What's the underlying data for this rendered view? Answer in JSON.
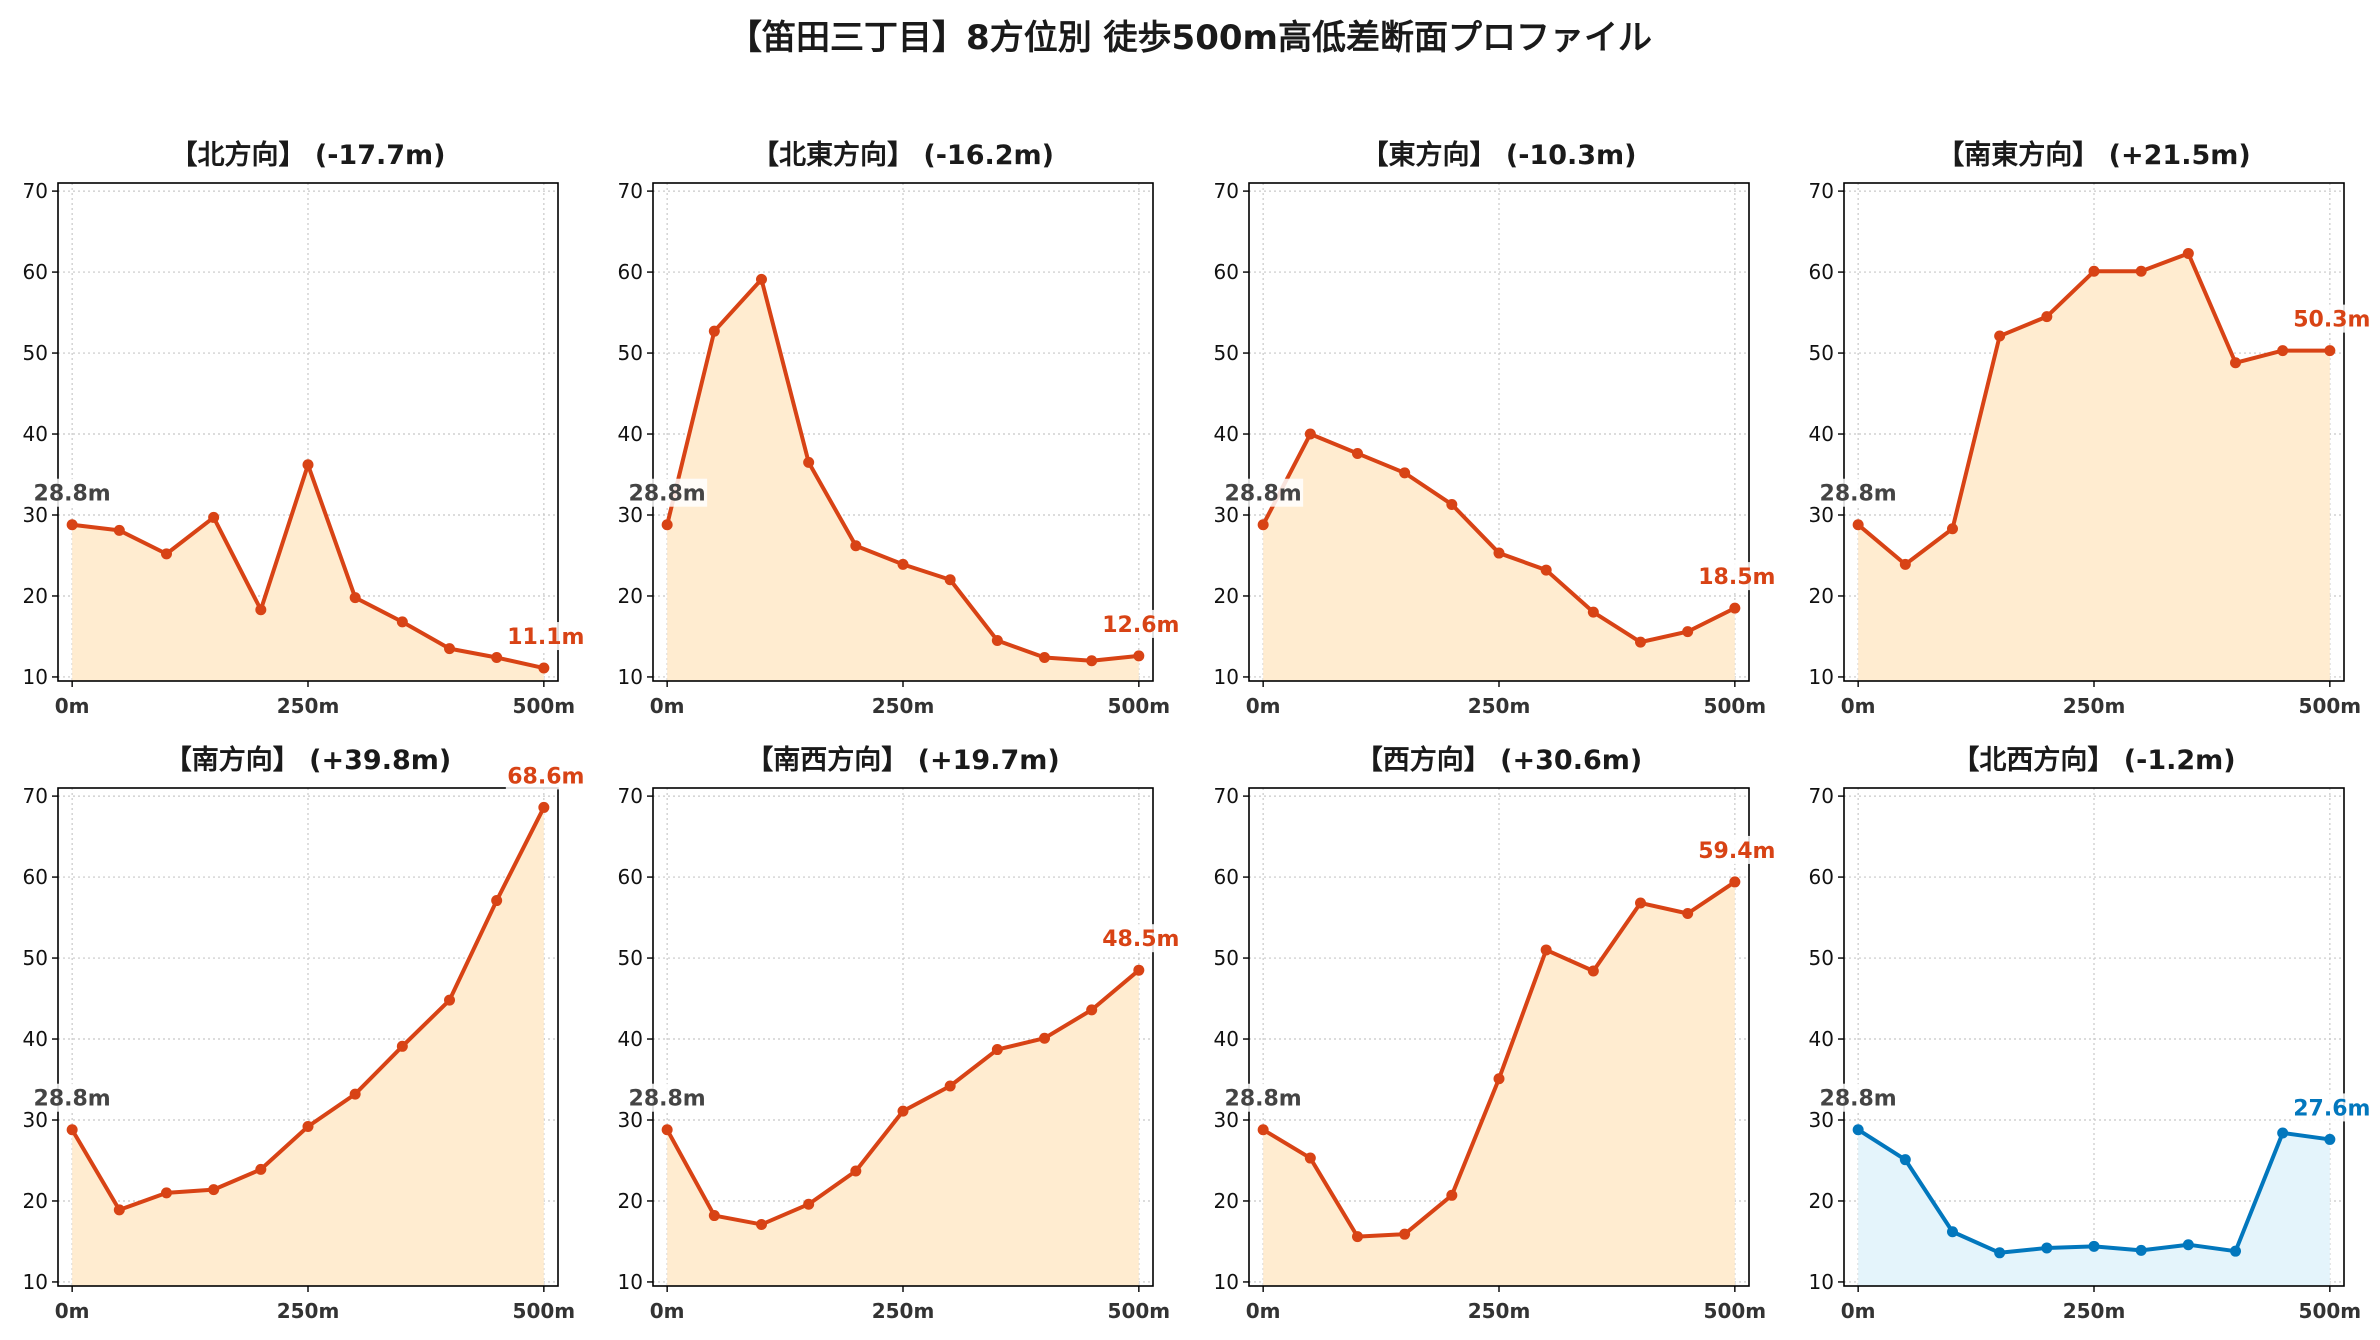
{
  "title": "【笛田三丁目】8方位別 徒歩500m高低差断面プロファイル",
  "colors": {
    "up": "#d84315",
    "down": "#0277bd",
    "upFill": "#ffecd0",
    "downFill": "#e4f4fb",
    "startLabel": "#444444"
  },
  "chart_data": [
    {
      "type": "line",
      "title": "【北方向】 (-17.7m)",
      "x": [
        0,
        50,
        100,
        150,
        200,
        250,
        300,
        350,
        400,
        450,
        500
      ],
      "values": [
        28.8,
        28.1,
        25.2,
        29.7,
        18.3,
        36.2,
        19.8,
        16.8,
        13.5,
        12.4,
        11.1
      ],
      "start_label": "28.8m",
      "end_label": "11.1m",
      "trend": "up",
      "xticks": [
        "0m",
        "250m",
        "500m"
      ],
      "yticks": [
        10,
        20,
        30,
        40,
        50,
        60,
        70
      ],
      "ylim": [
        9.5,
        71
      ],
      "xlim": [
        -15,
        515
      ],
      "grid": true
    },
    {
      "type": "line",
      "title": "【北東方向】 (-16.2m)",
      "x": [
        0,
        50,
        100,
        150,
        200,
        250,
        300,
        350,
        400,
        450,
        500
      ],
      "values": [
        28.8,
        52.7,
        59.1,
        36.5,
        26.2,
        23.9,
        22.0,
        14.5,
        12.4,
        12.0,
        12.6
      ],
      "start_label": "28.8m",
      "end_label": "12.6m",
      "trend": "up",
      "xticks": [
        "0m",
        "250m",
        "500m"
      ],
      "yticks": [
        10,
        20,
        30,
        40,
        50,
        60,
        70
      ],
      "ylim": [
        9.5,
        71
      ],
      "xlim": [
        -15,
        515
      ],
      "grid": true
    },
    {
      "type": "line",
      "title": "【東方向】 (-10.3m)",
      "x": [
        0,
        50,
        100,
        150,
        200,
        250,
        300,
        350,
        400,
        450,
        500
      ],
      "values": [
        28.8,
        40.0,
        37.6,
        35.2,
        31.3,
        25.3,
        23.2,
        18.0,
        14.3,
        15.6,
        18.5
      ],
      "start_label": "28.8m",
      "end_label": "18.5m",
      "trend": "up",
      "xticks": [
        "0m",
        "250m",
        "500m"
      ],
      "yticks": [
        10,
        20,
        30,
        40,
        50,
        60,
        70
      ],
      "ylim": [
        9.5,
        71
      ],
      "xlim": [
        -15,
        515
      ],
      "grid": true
    },
    {
      "type": "line",
      "title": "【南東方向】 (+21.5m)",
      "x": [
        0,
        50,
        100,
        150,
        200,
        250,
        300,
        350,
        400,
        450,
        500
      ],
      "values": [
        28.8,
        23.9,
        28.3,
        52.1,
        54.5,
        60.1,
        60.1,
        62.3,
        48.8,
        50.3,
        50.3
      ],
      "start_label": "28.8m",
      "end_label": "50.3m",
      "trend": "up",
      "xticks": [
        "0m",
        "250m",
        "500m"
      ],
      "yticks": [
        10,
        20,
        30,
        40,
        50,
        60,
        70
      ],
      "ylim": [
        9.5,
        71
      ],
      "xlim": [
        -15,
        515
      ],
      "grid": true
    },
    {
      "type": "line",
      "title": "【南方向】 (+39.8m)",
      "x": [
        0,
        50,
        100,
        150,
        200,
        250,
        300,
        350,
        400,
        450,
        500
      ],
      "values": [
        28.8,
        18.9,
        21.0,
        21.4,
        23.9,
        29.2,
        33.2,
        39.1,
        44.8,
        57.1,
        68.6
      ],
      "start_label": "28.8m",
      "end_label": "68.6m",
      "trend": "up",
      "xticks": [
        "0m",
        "250m",
        "500m"
      ],
      "yticks": [
        10,
        20,
        30,
        40,
        50,
        60,
        70
      ],
      "ylim": [
        9.5,
        71
      ],
      "xlim": [
        -15,
        515
      ],
      "grid": true
    },
    {
      "type": "line",
      "title": "【南西方向】 (+19.7m)",
      "x": [
        0,
        50,
        100,
        150,
        200,
        250,
        300,
        350,
        400,
        450,
        500
      ],
      "values": [
        28.8,
        18.2,
        17.1,
        19.6,
        23.7,
        31.1,
        34.2,
        38.7,
        40.1,
        43.6,
        48.5
      ],
      "start_label": "28.8m",
      "end_label": "48.5m",
      "trend": "up",
      "xticks": [
        "0m",
        "250m",
        "500m"
      ],
      "yticks": [
        10,
        20,
        30,
        40,
        50,
        60,
        70
      ],
      "ylim": [
        9.5,
        71
      ],
      "xlim": [
        -15,
        515
      ],
      "grid": true
    },
    {
      "type": "line",
      "title": "【西方向】 (+30.6m)",
      "x": [
        0,
        50,
        100,
        150,
        200,
        250,
        300,
        350,
        400,
        450,
        500
      ],
      "values": [
        28.8,
        25.3,
        15.6,
        15.9,
        20.7,
        35.1,
        51.0,
        48.4,
        56.8,
        55.5,
        59.4
      ],
      "start_label": "28.8m",
      "end_label": "59.4m",
      "trend": "up",
      "xticks": [
        "0m",
        "250m",
        "500m"
      ],
      "yticks": [
        10,
        20,
        30,
        40,
        50,
        60,
        70
      ],
      "ylim": [
        9.5,
        71
      ],
      "xlim": [
        -15,
        515
      ],
      "grid": true
    },
    {
      "type": "line",
      "title": "【北西方向】 (-1.2m)",
      "x": [
        0,
        50,
        100,
        150,
        200,
        250,
        300,
        350,
        400,
        450,
        500
      ],
      "values": [
        28.8,
        25.1,
        16.2,
        13.6,
        14.2,
        14.4,
        13.9,
        14.6,
        13.8,
        28.4,
        27.6
      ],
      "start_label": "28.8m",
      "end_label": "27.6m",
      "trend": "down",
      "xticks": [
        "0m",
        "250m",
        "500m"
      ],
      "yticks": [
        10,
        20,
        30,
        40,
        50,
        60,
        70
      ],
      "ylim": [
        9.5,
        71
      ],
      "xlim": [
        -15,
        515
      ],
      "grid": true
    }
  ]
}
